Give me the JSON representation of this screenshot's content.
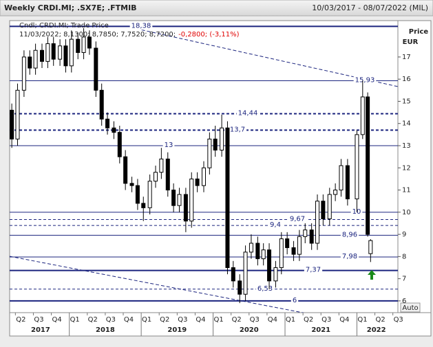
{
  "chart_data": {
    "type": "candlestick",
    "title": "Weekly CRDI.MI; .SX7E; .FTMIB",
    "date_range": "10/03/2017 - 08/07/2022 (MIL)",
    "legend": "Cndl; CRDI.MI; Trade Price",
    "last_info": "11/03/2022; 8,1300; 8,7850; 7,7520; 8,7200;",
    "last_change": "-0,2800; (-3,11%)",
    "y_axis_title": "Price",
    "y_axis_unit": "EUR",
    "auto_button": "Auto",
    "color": "#000000",
    "xlim": [
      2017.17,
      2022.57
    ],
    "ylim": [
      5.47,
      18.64
    ],
    "yticks": [
      6,
      7,
      8,
      9,
      10,
      11,
      12,
      13,
      14,
      15,
      16,
      17
    ],
    "xticks": [
      {
        "value": 2017.25,
        "label": "Q2"
      },
      {
        "value": 2017.5,
        "label": "Q3"
      },
      {
        "value": 2017.75,
        "label": "Q4"
      },
      {
        "value": 2018.0,
        "label": "Q1"
      },
      {
        "value": 2018.25,
        "label": "Q2"
      },
      {
        "value": 2018.5,
        "label": "Q3"
      },
      {
        "value": 2018.75,
        "label": "Q4"
      },
      {
        "value": 2019.0,
        "label": "Q1"
      },
      {
        "value": 2019.25,
        "label": "Q2"
      },
      {
        "value": 2019.5,
        "label": "Q3"
      },
      {
        "value": 2019.75,
        "label": "Q4"
      },
      {
        "value": 2020.0,
        "label": "Q1"
      },
      {
        "value": 2020.25,
        "label": "Q2"
      },
      {
        "value": 2020.5,
        "label": "Q3"
      },
      {
        "value": 2020.75,
        "label": "Q4"
      },
      {
        "value": 2021.0,
        "label": "Q1"
      },
      {
        "value": 2021.25,
        "label": "Q2"
      },
      {
        "value": 2021.5,
        "label": "Q3"
      },
      {
        "value": 2021.75,
        "label": "Q4"
      },
      {
        "value": 2022.0,
        "label": "Q1"
      },
      {
        "value": 2022.25,
        "label": "Q2"
      },
      {
        "value": 2022.5,
        "label": "Q3"
      }
    ],
    "year_labels": [
      {
        "value": 2017.6,
        "label": "2017"
      },
      {
        "value": 2018.5,
        "label": "2018"
      },
      {
        "value": 2019.5,
        "label": "2019"
      },
      {
        "value": 2020.5,
        "label": "2020"
      },
      {
        "value": 2021.5,
        "label": "2021"
      },
      {
        "value": 2022.27,
        "label": "2022"
      }
    ],
    "levels": [
      {
        "value": 18.38,
        "label": "18,38",
        "style": "solid-thick"
      },
      {
        "value": 15.93,
        "label": "15,93",
        "style": "solid"
      },
      {
        "value": 14.44,
        "label": "14,44",
        "style": "dashed-thick"
      },
      {
        "value": 13.7,
        "label": "13,7",
        "style": "dashed-thick"
      },
      {
        "value": 13,
        "label": "13",
        "style": "solid"
      },
      {
        "value": 10,
        "label": "10",
        "style": "solid"
      },
      {
        "value": 9.67,
        "label": "9,67",
        "style": "dashed"
      },
      {
        "value": 9.4,
        "label": "9,4",
        "style": "dashed"
      },
      {
        "value": 8.96,
        "label": "8,96",
        "style": "solid"
      },
      {
        "value": 7.98,
        "label": "7,98",
        "style": "solid"
      },
      {
        "value": 7.37,
        "label": "7,37",
        "style": "solid-thick"
      },
      {
        "value": 6.53,
        "label": "6,53",
        "style": "dashed"
      },
      {
        "value": 6,
        "label": "6",
        "style": "solid-thick"
      }
    ],
    "x": [
      2017.2,
      2017.28,
      2017.37,
      2017.45,
      2017.53,
      2017.62,
      2017.7,
      2017.78,
      2017.87,
      2017.95,
      2018.03,
      2018.12,
      2018.2,
      2018.28,
      2018.37,
      2018.45,
      2018.53,
      2018.62,
      2018.7,
      2018.78,
      2018.87,
      2018.95,
      2019.03,
      2019.12,
      2019.2,
      2019.28,
      2019.37,
      2019.45,
      2019.53,
      2019.62,
      2019.7,
      2019.78,
      2019.87,
      2019.95,
      2020.03,
      2020.12,
      2020.2,
      2020.28,
      2020.37,
      2020.45,
      2020.53,
      2020.62,
      2020.7,
      2020.78,
      2020.87,
      2020.95,
      2021.03,
      2021.12,
      2021.2,
      2021.28,
      2021.37,
      2021.45,
      2021.53,
      2021.62,
      2021.7,
      2021.78,
      2021.87,
      2022.0,
      2022.08,
      2022.15,
      2022.19
    ],
    "open": [
      14.6,
      13.3,
      15.5,
      17.0,
      16.5,
      17.3,
      16.8,
      17.6,
      16.9,
      17.5,
      16.6,
      17.8,
      17.2,
      17.9,
      17.4,
      15.5,
      14.2,
      13.8,
      13.6,
      12.5,
      11.3,
      11.2,
      10.4,
      10.2,
      11.4,
      11.8,
      12.4,
      11.0,
      10.3,
      10.8,
      9.6,
      11.5,
      11.2,
      12.0,
      13.3,
      12.8,
      13.8,
      7.5,
      6.9,
      6.3,
      8.2,
      8.6,
      7.9,
      8.3,
      6.9,
      7.5,
      8.8,
      8.4,
      8.1,
      8.9,
      9.2,
      8.6,
      10.5,
      9.7,
      10.8,
      11.0,
      12.1,
      10.6,
      13.5,
      15.2,
      8.13
    ],
    "high": [
      14.9,
      15.8,
      17.3,
      17.3,
      17.6,
      17.6,
      17.9,
      17.9,
      17.8,
      17.8,
      18.2,
      18.1,
      18.3,
      18.2,
      17.7,
      15.8,
      14.5,
      14.1,
      13.9,
      12.8,
      11.6,
      11.5,
      10.7,
      11.7,
      12.1,
      12.9,
      12.7,
      11.3,
      11.1,
      11.1,
      11.8,
      11.8,
      12.3,
      13.6,
      13.9,
      14.4,
      14.1,
      7.8,
      7.2,
      8.5,
      9.0,
      8.9,
      8.6,
      8.6,
      7.8,
      9.1,
      9.1,
      8.7,
      9.2,
      9.5,
      9.5,
      10.8,
      10.8,
      11.1,
      11.3,
      12.4,
      12.4,
      13.7,
      15.93,
      15.4,
      8.785
    ],
    "low": [
      12.9,
      13.0,
      15.2,
      16.2,
      16.2,
      16.5,
      16.5,
      16.6,
      16.6,
      16.3,
      16.3,
      16.9,
      16.9,
      17.1,
      15.2,
      13.9,
      13.5,
      13.3,
      12.2,
      11.0,
      10.9,
      10.1,
      9.6,
      9.9,
      11.1,
      11.5,
      10.7,
      10.0,
      10.0,
      9.1,
      9.3,
      10.9,
      10.9,
      11.7,
      12.5,
      12.5,
      7.2,
      6.6,
      5.9,
      6.0,
      7.9,
      7.6,
      7.6,
      6.53,
      6.6,
      7.2,
      8.1,
      7.8,
      7.8,
      8.6,
      8.3,
      8.3,
      9.4,
      9.4,
      10.5,
      10.7,
      10.3,
      10.0,
      13.3,
      8.9,
      7.752
    ],
    "close": [
      13.3,
      15.5,
      17.0,
      16.5,
      17.3,
      16.8,
      17.6,
      16.9,
      17.5,
      16.6,
      17.8,
      17.2,
      17.9,
      17.4,
      15.5,
      14.2,
      13.8,
      13.6,
      12.5,
      11.3,
      11.2,
      10.4,
      10.2,
      11.4,
      11.8,
      12.4,
      11.0,
      10.3,
      10.8,
      9.6,
      11.5,
      11.2,
      12.0,
      13.3,
      12.8,
      13.8,
      7.5,
      6.9,
      6.3,
      8.2,
      8.6,
      7.9,
      8.3,
      6.9,
      7.5,
      8.8,
      8.4,
      8.1,
      8.9,
      9.2,
      8.6,
      10.5,
      9.7,
      10.8,
      11.0,
      12.1,
      10.6,
      13.5,
      15.2,
      9.0,
      8.72
    ]
  }
}
